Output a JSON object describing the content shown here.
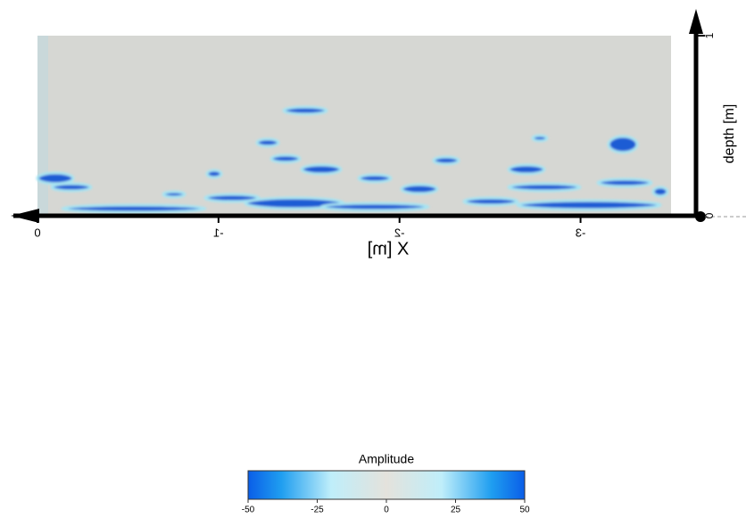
{
  "chart_data": {
    "type": "radargram",
    "x_label": "X [m]",
    "y_label": "depth [m]",
    "xlim": [
      0,
      -3.5
    ],
    "xticks": [
      0,
      -1,
      -2,
      -3
    ],
    "ylim": [
      0,
      1
    ],
    "yticks": [
      0,
      1
    ],
    "colorbar": {
      "title": "Amplitude",
      "lim": [
        -50,
        50
      ],
      "ticks": [
        -50,
        -25,
        0,
        25,
        50
      ]
    }
  }
}
